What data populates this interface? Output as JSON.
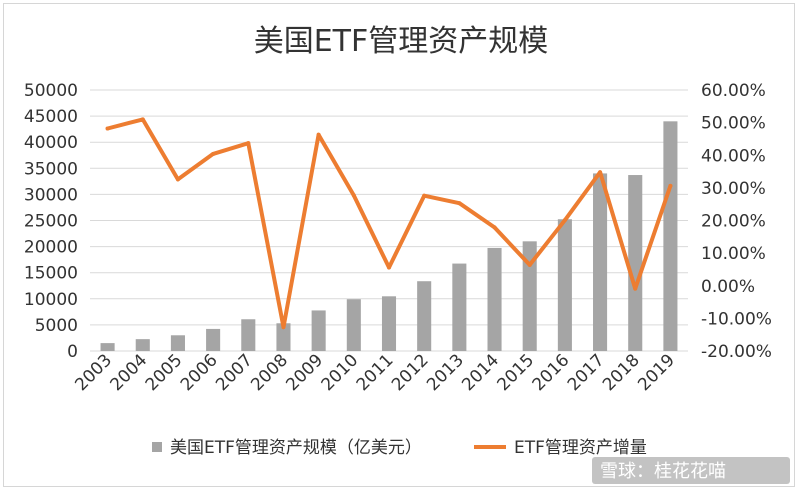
{
  "chart_data": {
    "type": "bar",
    "title": "美国ETF管理资产规模",
    "categories": [
      "2003",
      "2004",
      "2005",
      "2006",
      "2007",
      "2008",
      "2009",
      "2010",
      "2011",
      "2012",
      "2013",
      "2014",
      "2015",
      "2016",
      "2017",
      "2018",
      "2019"
    ],
    "series": [
      {
        "name": "美国ETF管理资产规模（亿美元）",
        "type": "bar",
        "axis": "left",
        "color": "#a5a5a5",
        "values": [
          1510,
          2270,
          3010,
          4230,
          6080,
          5310,
          7770,
          9920,
          10480,
          13370,
          16750,
          19740,
          21010,
          25240,
          34020,
          33710,
          44000
        ]
      },
      {
        "name": "ETF管理资产增量",
        "type": "line",
        "axis": "right",
        "color": "#ed7d31",
        "values": [
          48.2,
          51.0,
          32.6,
          40.4,
          43.7,
          -12.7,
          46.3,
          27.7,
          5.6,
          27.6,
          25.3,
          17.9,
          6.4,
          20.1,
          34.8,
          -0.9,
          30.6
        ]
      }
    ],
    "yaxis_left": {
      "min": 0,
      "max": 50000,
      "step": 5000,
      "ticks": [
        "0",
        "5000",
        "10000",
        "15000",
        "20000",
        "25000",
        "30000",
        "35000",
        "40000",
        "45000",
        "50000"
      ]
    },
    "yaxis_right": {
      "min": -20,
      "max": 60,
      "step": 10,
      "ticks": [
        "-20.00%",
        "-10.00%",
        "0.00%",
        "10.00%",
        "20.00%",
        "30.00%",
        "40.00%",
        "50.00%",
        "60.00%"
      ]
    },
    "grid": true,
    "legend_position": "bottom"
  },
  "watermark": "雪球：桂花花喵"
}
